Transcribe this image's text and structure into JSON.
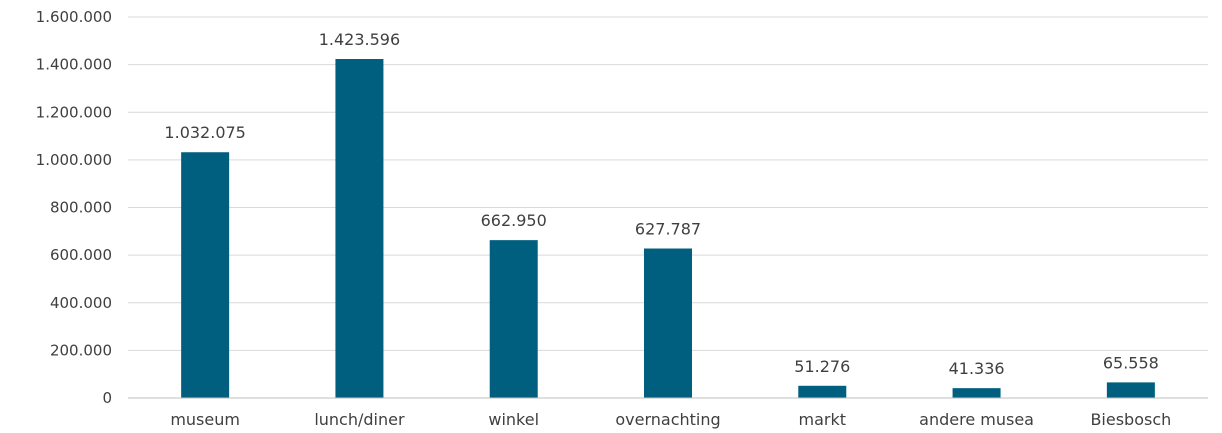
{
  "chart_data": {
    "type": "bar",
    "categories": [
      "museum",
      "lunch/diner",
      "winkel",
      "overnachting",
      "markt",
      "andere musea",
      "Biesbosch"
    ],
    "values": [
      1032075,
      1423596,
      662950,
      627787,
      51276,
      41336,
      65558
    ],
    "value_labels": [
      "1.032.075",
      "1.423.596",
      "662.950",
      "627.787",
      "51.276",
      "41.336",
      "65.558"
    ],
    "y_ticks": [
      0,
      200000,
      400000,
      600000,
      800000,
      1000000,
      1200000,
      1400000,
      1600000
    ],
    "y_tick_labels": [
      "0",
      "200.000",
      "400.000",
      "600.000",
      "800.000",
      "1.000.000",
      "1.200.000",
      "1.400.000",
      "1.600.000"
    ],
    "ylim": [
      0,
      1600000
    ],
    "grid": true,
    "legend": "none",
    "bar_color": "#005F7F",
    "title": "",
    "xlabel": "",
    "ylabel": ""
  }
}
